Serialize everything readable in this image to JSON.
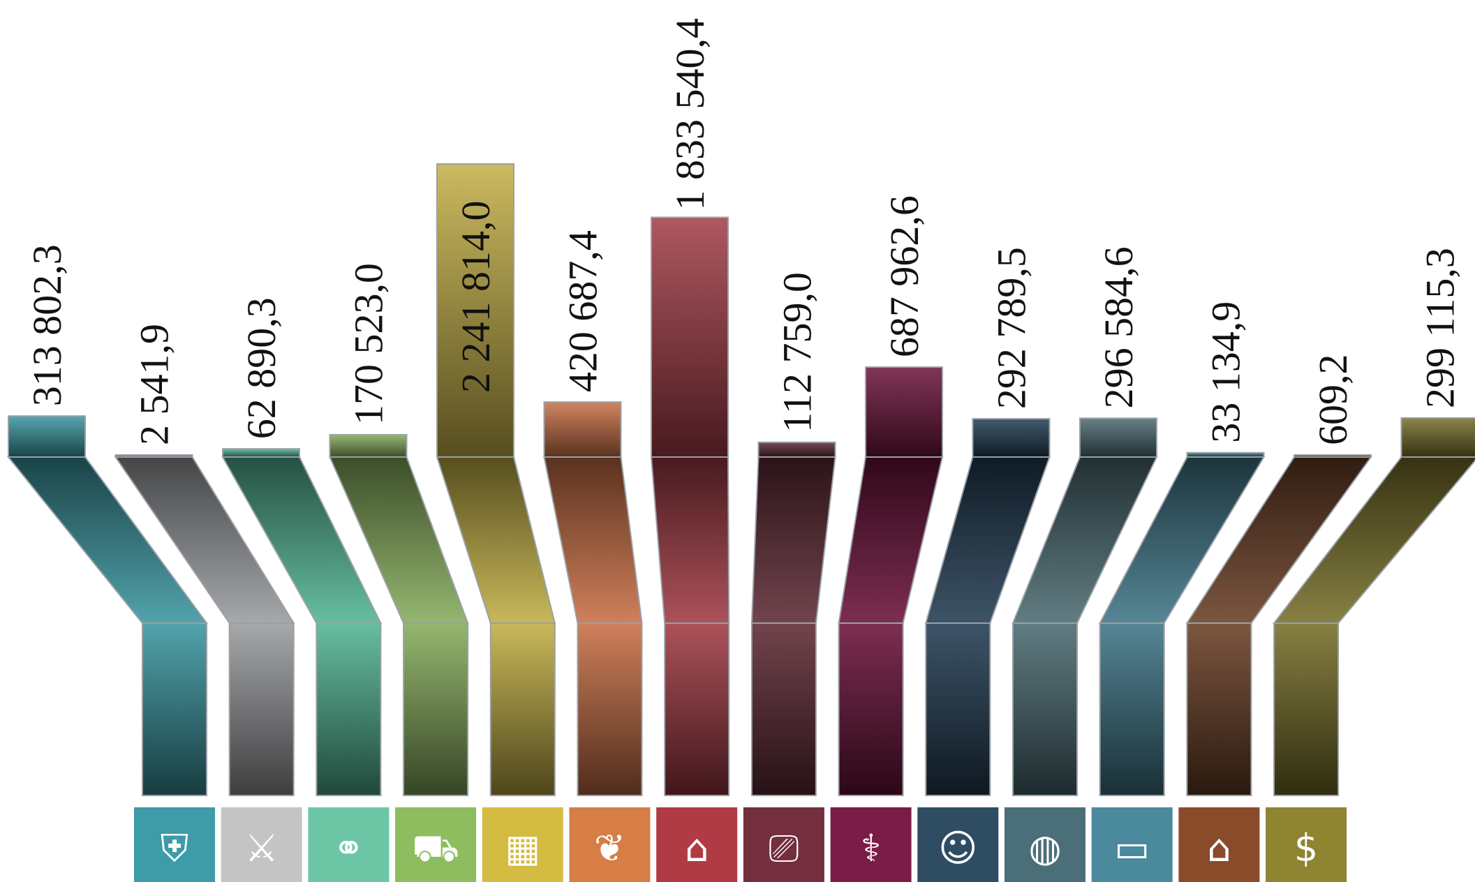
{
  "chart_data": {
    "type": "bar",
    "title": "",
    "xlabel": "",
    "ylabel": "",
    "ylim": [
      0,
      2300000
    ],
    "grid": false,
    "legend": "none",
    "categories": [
      "general-state-issues",
      "national-defense",
      "national-security-law-enforcement",
      "national-economy",
      "housing-utilities",
      "environmental-protection",
      "education",
      "culture-cinematography",
      "healthcare",
      "social-policy",
      "physical-culture-sport",
      "mass-media",
      "public-debt-service",
      "interbudgetary-transfers"
    ],
    "value_labels": [
      "313 802,3",
      "2 541,9",
      "62 890,3",
      "170 523,0",
      "2 241 814,0",
      "420 687,4",
      "1 833 540,4",
      "112 759,0",
      "687 962,6",
      "292 789,5",
      "296 584,6",
      "33 134,9",
      "609,2",
      "299 115,3"
    ],
    "values": [
      313802.3,
      2541.9,
      62890.3,
      170523.0,
      2241814.0,
      420687.4,
      1833540.4,
      112759.0,
      687962.6,
      292789.5,
      296584.6,
      33134.9,
      609.2,
      299115.3
    ],
    "colors": [
      "#3a96a1",
      "#9a9c9e",
      "#52b594",
      "#86ad5c",
      "#c2ae44",
      "#c96f45",
      "#a13a44",
      "#5f2a35",
      "#6b1239",
      "#223d52",
      "#4b6b72",
      "#3f7688",
      "#6a3f25",
      "#777029"
    ],
    "icons": [
      "emblem-icon",
      "cannon-icon",
      "handcuffs-icon",
      "harvester-icon",
      "building-icon",
      "leaf-icon",
      "graduation-book-icon",
      "film-camera-icon",
      "caduceus-icon",
      "people-icon",
      "ball-icon",
      "tv-icon",
      "bank-coins-icon",
      "money-bag-icon"
    ],
    "icon_colors": [
      "#3e9ba8",
      "#c4c4c4",
      "#6cc6a6",
      "#8dbd5f",
      "#d4bc43",
      "#d67e46",
      "#b03b45",
      "#742f3f",
      "#7b1c46",
      "#2f4d62",
      "#4b6f78",
      "#4a8a9c",
      "#8a4b2b",
      "#8f842f"
    ],
    "icon_glyphs": [
      "⛨",
      "⚔",
      "⚭",
      "⛟",
      "▦",
      "❦",
      "⌂",
      "⎚",
      "⚕",
      "☺",
      "◍",
      "▭",
      "⌂",
      "$"
    ]
  }
}
